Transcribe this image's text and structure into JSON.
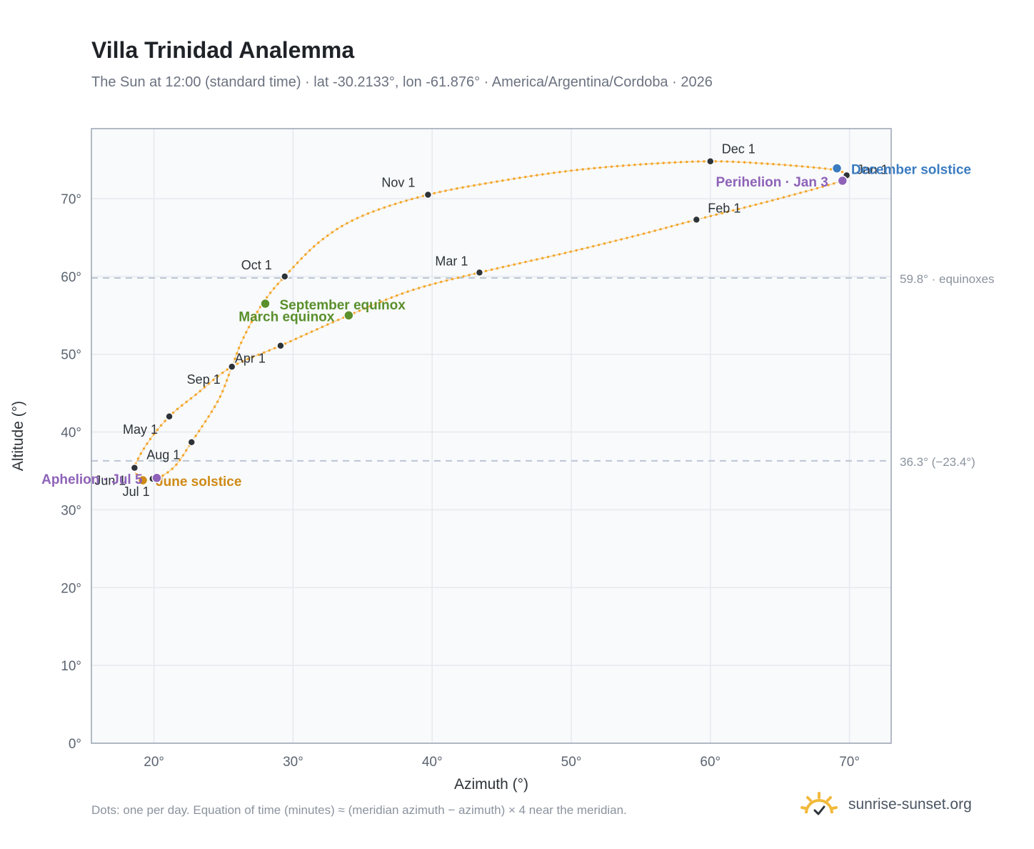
{
  "header": {
    "title": "Villa Trinidad Analemma",
    "subtitle": "The Sun at 12:00 (standard time) · lat -30.2133°, lon -61.876° · America/Argentina/Cordoba · 2026"
  },
  "footer": {
    "note": "Dots: one per day. Equation of time (minutes) ≈ (meridian azimuth − azimuth) × 4 near the meridian.",
    "brand": "sunrise-sunset.org"
  },
  "colors": {
    "path": "#f4a62a",
    "month_dot": "#2d3338",
    "equinox": "#5a8f2c",
    "june_solstice": "#cf8a16",
    "december_solstice": "#3b7bc0",
    "apsis": "#8e62b8",
    "grid": "#e6e9ee",
    "reference_line": "#bcc6d2",
    "plot_bg": "#f8fafc",
    "frame": "#9aa4b2"
  },
  "chart_data": {
    "type": "scatter",
    "title": "Villa Trinidad Analemma",
    "xlabel": "Azimuth (°)",
    "ylabel": "Altitude (°)",
    "xlim": [
      15.5,
      73
    ],
    "ylim": [
      0,
      79
    ],
    "x_ticks": [
      20,
      30,
      40,
      50,
      60,
      70
    ],
    "y_ticks": [
      0,
      10,
      20,
      30,
      40,
      50,
      60,
      70
    ],
    "x_tick_labels": [
      "20°",
      "30°",
      "40°",
      "50°",
      "60°",
      "70°"
    ],
    "y_tick_labels": [
      "0°",
      "10°",
      "20°",
      "30°",
      "40°",
      "50°",
      "60°",
      "70°"
    ],
    "grid": true,
    "reference_lines": [
      {
        "y": 59.8,
        "label": "59.8° · equinoxes"
      },
      {
        "y": 36.3,
        "label": "36.3° (−23.4°)"
      }
    ],
    "series": [
      {
        "kind": "daily-path",
        "points": [
          [
            69.8,
            73.0
          ],
          [
            69.2,
            73.6
          ],
          [
            67.5,
            74.0
          ],
          [
            64.0,
            74.5
          ],
          [
            60.0,
            74.8
          ],
          [
            55.0,
            74.4
          ],
          [
            50.0,
            73.6
          ],
          [
            45.0,
            72.3
          ],
          [
            39.7,
            70.5
          ],
          [
            35.0,
            67.8
          ],
          [
            32.0,
            64.6
          ],
          [
            29.4,
            60.0
          ],
          [
            27.8,
            56.5
          ],
          [
            26.4,
            52.0
          ],
          [
            25.6,
            48.4
          ],
          [
            24.6,
            44.0
          ],
          [
            22.7,
            38.7
          ],
          [
            21.5,
            35.6
          ],
          [
            20.3,
            34.1
          ],
          [
            19.5,
            33.8
          ],
          [
            19.0,
            34.2
          ],
          [
            18.6,
            35.4
          ],
          [
            19.5,
            38.5
          ],
          [
            21.1,
            42.0
          ],
          [
            23.0,
            44.8
          ],
          [
            25.6,
            48.4
          ],
          [
            29.1,
            51.1
          ],
          [
            34.0,
            55.0
          ],
          [
            38.5,
            58.2
          ],
          [
            43.4,
            60.5
          ],
          [
            50.0,
            63.2
          ],
          [
            55.0,
            65.4
          ],
          [
            59.0,
            67.3
          ],
          [
            64.5,
            69.8
          ],
          [
            69.5,
            72.3
          ]
        ]
      }
    ],
    "month_markers": [
      {
        "label": "Jan 1",
        "x": 69.8,
        "y": 73.0
      },
      {
        "label": "Feb 1",
        "x": 59.0,
        "y": 67.3
      },
      {
        "label": "Mar 1",
        "x": 43.4,
        "y": 60.5
      },
      {
        "label": "Apr 1",
        "x": 29.1,
        "y": 51.1
      },
      {
        "label": "May 1",
        "x": 21.1,
        "y": 42.0
      },
      {
        "label": "Jun 1",
        "x": 18.6,
        "y": 35.4
      },
      {
        "label": "Jul 1",
        "x": 19.9,
        "y": 34.0
      },
      {
        "label": "Aug 1",
        "x": 22.7,
        "y": 38.7
      },
      {
        "label": "Sep 1",
        "x": 25.6,
        "y": 48.4
      },
      {
        "label": "Oct 1",
        "x": 29.4,
        "y": 60.0
      },
      {
        "label": "Nov 1",
        "x": 39.7,
        "y": 70.5
      },
      {
        "label": "Dec 1",
        "x": 60.0,
        "y": 74.8
      }
    ],
    "events": [
      {
        "label": "March equinox",
        "x": 34.0,
        "y": 55.0,
        "color": "#5a8f2c"
      },
      {
        "label": "September equinox",
        "x": 28.0,
        "y": 56.5,
        "color": "#5a8f2c"
      },
      {
        "label": "June solstice",
        "x": 19.2,
        "y": 33.8,
        "color": "#cf8a16"
      },
      {
        "label": "December solstice",
        "x": 69.1,
        "y": 73.9,
        "color": "#3b7bc0"
      },
      {
        "label": "Aphelion · Jul 5",
        "x": 20.2,
        "y": 34.1,
        "color": "#8e62b8"
      },
      {
        "label": "Perihelion · Jan 3",
        "x": 69.5,
        "y": 72.3,
        "color": "#8e62b8"
      }
    ]
  }
}
